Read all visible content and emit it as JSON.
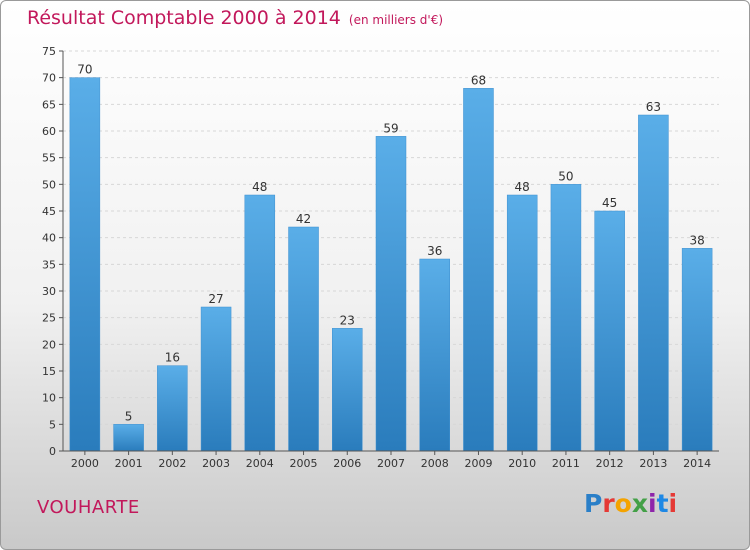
{
  "header": {
    "title": "Résultat Comptable 2000 à 2014",
    "subtitle": "(en milliers d'€)"
  },
  "place_name": "VOUHARTE",
  "logo_text": "Proxiti",
  "colors": {
    "accent": "#c2185b",
    "bar_top": "#5aaee8",
    "bar_bottom": "#2a7cbc"
  },
  "chart_data": {
    "type": "bar",
    "title": "Résultat Comptable 2000 à 2014",
    "subtitle": "(en milliers d'€)",
    "categories": [
      "2000",
      "2001",
      "2002",
      "2003",
      "2004",
      "2005",
      "2006",
      "2007",
      "2008",
      "2009",
      "2010",
      "2011",
      "2012",
      "2013",
      "2014"
    ],
    "values": [
      70,
      5,
      16,
      27,
      48,
      42,
      23,
      59,
      36,
      68,
      48,
      50,
      45,
      63,
      38
    ],
    "ylim": [
      0,
      75
    ],
    "yticks": [
      0,
      5,
      10,
      15,
      20,
      25,
      30,
      35,
      40,
      45,
      50,
      55,
      60,
      65,
      70,
      75
    ],
    "grid": true,
    "xlabel": "",
    "ylabel": ""
  }
}
